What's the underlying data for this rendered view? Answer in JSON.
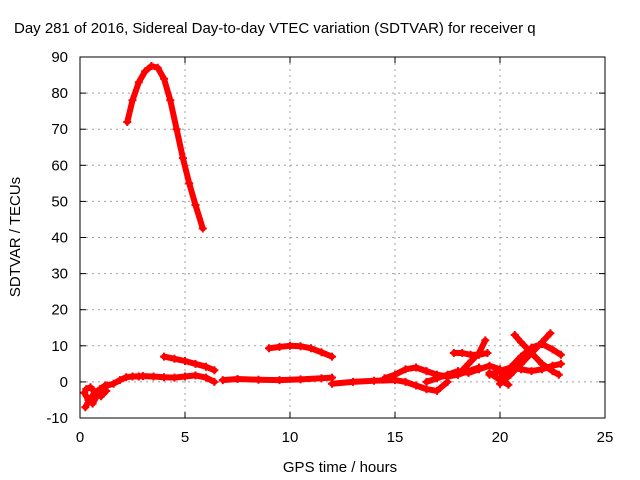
{
  "chart_data": {
    "type": "scatter",
    "title": "Day 281 of 2016, Sidereal Day-to-day VTEC variation (SDTVAR) for receiver q",
    "xlabel": "GPS time / hours",
    "ylabel": "SDTVAR / TECUs",
    "xlim": [
      0,
      25
    ],
    "ylim": [
      -10,
      90
    ],
    "xticks": [
      0,
      5,
      10,
      15,
      20,
      25
    ],
    "yticks": [
      -10,
      0,
      10,
      20,
      30,
      40,
      50,
      60,
      70,
      80,
      90
    ],
    "grid": true,
    "color": "#ff0000",
    "marker": "plus",
    "series": [
      {
        "x": [
          2.25,
          2.5,
          2.8,
          3.1,
          3.4,
          3.7,
          4.0,
          4.3,
          4.6,
          4.9,
          5.2,
          5.5,
          5.85
        ],
        "y": [
          72,
          78,
          83,
          86,
          87.5,
          87,
          84,
          78,
          70,
          62,
          55,
          49,
          42.5
        ]
      },
      {
        "x": [
          0.2,
          0.4,
          0.6,
          0.8,
          1.0,
          1.3,
          1.6,
          1.9,
          2.2,
          2.5,
          2.8
        ],
        "y": [
          -3,
          -5,
          -6,
          -4,
          -2,
          -1,
          -0.5,
          0.5,
          1.3,
          1.5,
          1.5
        ]
      },
      {
        "x": [
          0.25,
          0.45,
          0.7,
          0.95,
          1.2
        ],
        "y": [
          -7,
          -5,
          -3,
          -2,
          -1
        ]
      },
      {
        "x": [
          0.3,
          0.5,
          0.75,
          1.0,
          1.25
        ],
        "y": [
          -2,
          -1.5,
          -3,
          -4,
          -2.5
        ]
      },
      {
        "x": [
          2.5,
          3.0,
          3.5,
          4.0,
          4.5,
          5.0,
          5.5,
          6.0,
          6.4
        ],
        "y": [
          1.5,
          1.6,
          1.5,
          1.3,
          1.2,
          1.5,
          1.8,
          1.2,
          0
        ]
      },
      {
        "x": [
          4.0,
          4.5,
          5.0,
          5.5,
          6.0,
          6.4
        ],
        "y": [
          7,
          6.4,
          5.8,
          5.0,
          4.2,
          3.2
        ]
      },
      {
        "x": [
          6.8,
          7.5,
          8.5,
          9.5,
          10.5,
          11.5,
          12.0
        ],
        "y": [
          0.5,
          0.8,
          0.6,
          0.5,
          0.7,
          1.0,
          1.2
        ]
      },
      {
        "x": [
          9.0,
          9.5,
          10.0,
          10.5,
          11.0,
          11.5,
          12.0
        ],
        "y": [
          9.3,
          9.7,
          10.0,
          9.9,
          9.3,
          8.2,
          7.0
        ]
      },
      {
        "x": [
          12.0,
          13.0,
          14.0,
          15.0,
          15.5,
          16.0,
          16.5,
          17.0,
          17.5
        ],
        "y": [
          -0.5,
          0,
          0.3,
          0.5,
          0,
          -1,
          -2,
          -2.5,
          0
        ]
      },
      {
        "x": [
          14.5,
          15.0,
          15.5,
          16.0,
          16.5,
          17.0,
          17.5,
          18.0,
          18.5,
          19.0
        ],
        "y": [
          1,
          2,
          3.5,
          4,
          3,
          2,
          1.5,
          2,
          3,
          4
        ]
      },
      {
        "x": [
          16.5,
          17.0,
          17.5,
          18.0,
          18.5,
          19.0,
          19.5,
          20.0
        ],
        "y": [
          0,
          1,
          2,
          3,
          2.5,
          3.5,
          4.5,
          3.5
        ]
      },
      {
        "x": [
          17.8,
          18.2,
          18.6,
          19.0,
          19.4
        ],
        "y": [
          8,
          8,
          7.5,
          7.5,
          8
        ]
      },
      {
        "x": [
          18.0,
          18.5,
          19.0,
          19.3
        ],
        "y": [
          2,
          5,
          8,
          11.5
        ]
      },
      {
        "x": [
          19.5,
          20.0,
          20.5,
          21.0,
          21.5,
          22.0,
          22.5,
          22.9
        ],
        "y": [
          2,
          3,
          4,
          3.5,
          3,
          3.5,
          4.5,
          5
        ]
      },
      {
        "x": [
          20.0,
          20.5,
          21.0,
          21.5,
          22.0,
          22.5,
          22.9
        ],
        "y": [
          1,
          4,
          7,
          9.5,
          10.5,
          9,
          7.5
        ]
      },
      {
        "x": [
          20.7,
          21.0,
          21.5,
          22.0,
          22.5,
          22.8
        ],
        "y": [
          13,
          11,
          8,
          5,
          3,
          2
        ]
      },
      {
        "x": [
          20.0,
          20.5,
          21.0,
          21.5,
          22.0,
          22.4
        ],
        "y": [
          -0.5,
          2,
          5,
          8,
          11,
          13.5
        ]
      },
      {
        "x": [
          19.5,
          20.0,
          20.4
        ],
        "y": [
          2.5,
          0.5,
          -0.8
        ]
      }
    ]
  }
}
